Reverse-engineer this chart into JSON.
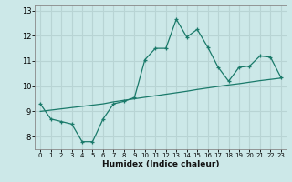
{
  "title": "",
  "xlabel": "Humidex (Indice chaleur)",
  "ylabel": "",
  "x_values": [
    0,
    1,
    2,
    3,
    4,
    5,
    6,
    7,
    8,
    9,
    10,
    11,
    12,
    13,
    14,
    15,
    16,
    17,
    18,
    19,
    20,
    21,
    22,
    23
  ],
  "y_main": [
    9.3,
    8.7,
    8.6,
    8.5,
    7.8,
    7.8,
    8.7,
    9.3,
    9.4,
    9.55,
    11.05,
    11.5,
    11.5,
    12.65,
    11.95,
    12.25,
    11.55,
    10.75,
    10.2,
    10.75,
    10.8,
    11.2,
    11.15,
    10.35
  ],
  "y_trend": [
    9.0,
    9.05,
    9.1,
    9.15,
    9.2,
    9.25,
    9.3,
    9.38,
    9.44,
    9.5,
    9.56,
    9.62,
    9.68,
    9.74,
    9.8,
    9.87,
    9.93,
    9.99,
    10.05,
    10.1,
    10.16,
    10.22,
    10.27,
    10.32
  ],
  "bg_color": "#cce8e8",
  "grid_color": "#b8d4d4",
  "line_color": "#1a7a6a",
  "ylim": [
    7.5,
    13.2
  ],
  "xlim": [
    -0.5,
    23.5
  ],
  "yticks": [
    8,
    9,
    10,
    11,
    12,
    13
  ],
  "xticks": [
    0,
    1,
    2,
    3,
    4,
    5,
    6,
    7,
    8,
    9,
    10,
    11,
    12,
    13,
    14,
    15,
    16,
    17,
    18,
    19,
    20,
    21,
    22,
    23
  ]
}
